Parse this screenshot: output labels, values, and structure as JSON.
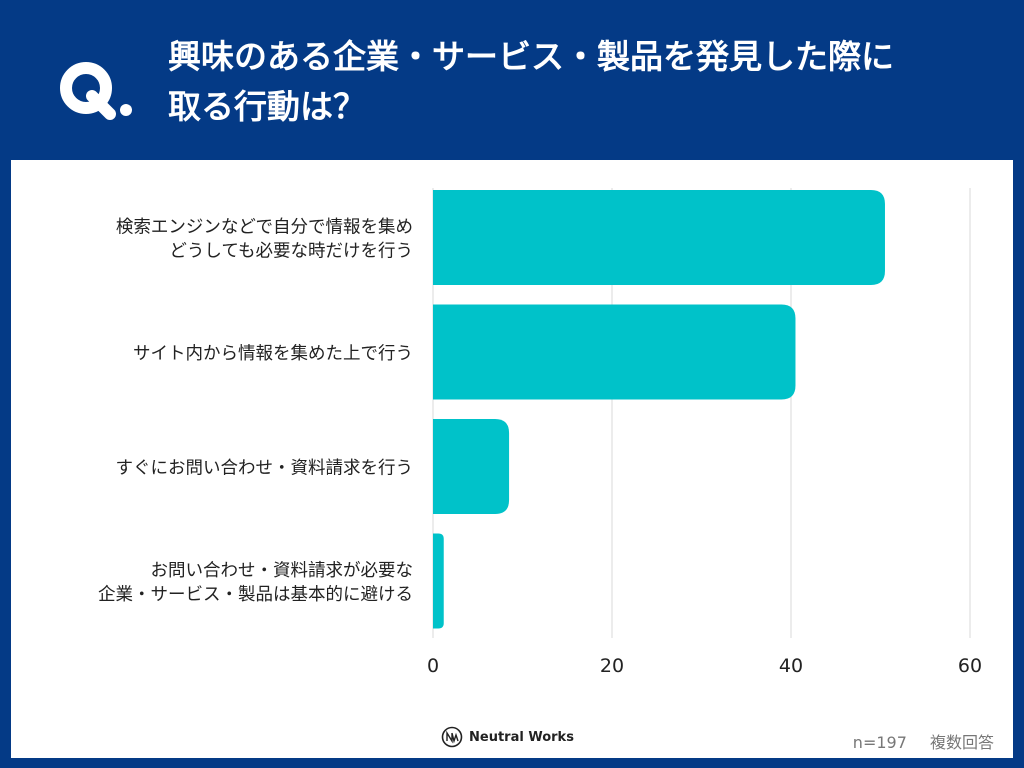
{
  "header": {
    "q_label": "Q.",
    "title_line1": "興味のある企業・サービス・製品を発見した際に",
    "title_line2": "取る行動は？"
  },
  "colors": {
    "frame": "#043a86",
    "bar": "#00c2c9",
    "grid": "#d9d9d9",
    "label": "#222222"
  },
  "chart_data": {
    "type": "bar",
    "orientation": "horizontal",
    "categories": [
      [
        "検索エンジンなどで自分で情報を集め",
        "どうしても必要な時だけを行う"
      ],
      [
        "サイト内から情報を集めた上で行う"
      ],
      [
        "すぐにお問い合わせ・資料請求を行う"
      ],
      [
        "お問い合わせ・資料請求が必要な",
        "企業・サービス・製品は基本的に避ける"
      ]
    ],
    "values": [
      50.5,
      40.5,
      8.5,
      1.2
    ],
    "xlim": [
      0,
      60
    ],
    "xticks": [
      "0",
      "20",
      "40",
      "60"
    ],
    "grid": true
  },
  "footer": {
    "brand": "Neutral Works",
    "sample": "n=197",
    "note": "複数回答"
  }
}
